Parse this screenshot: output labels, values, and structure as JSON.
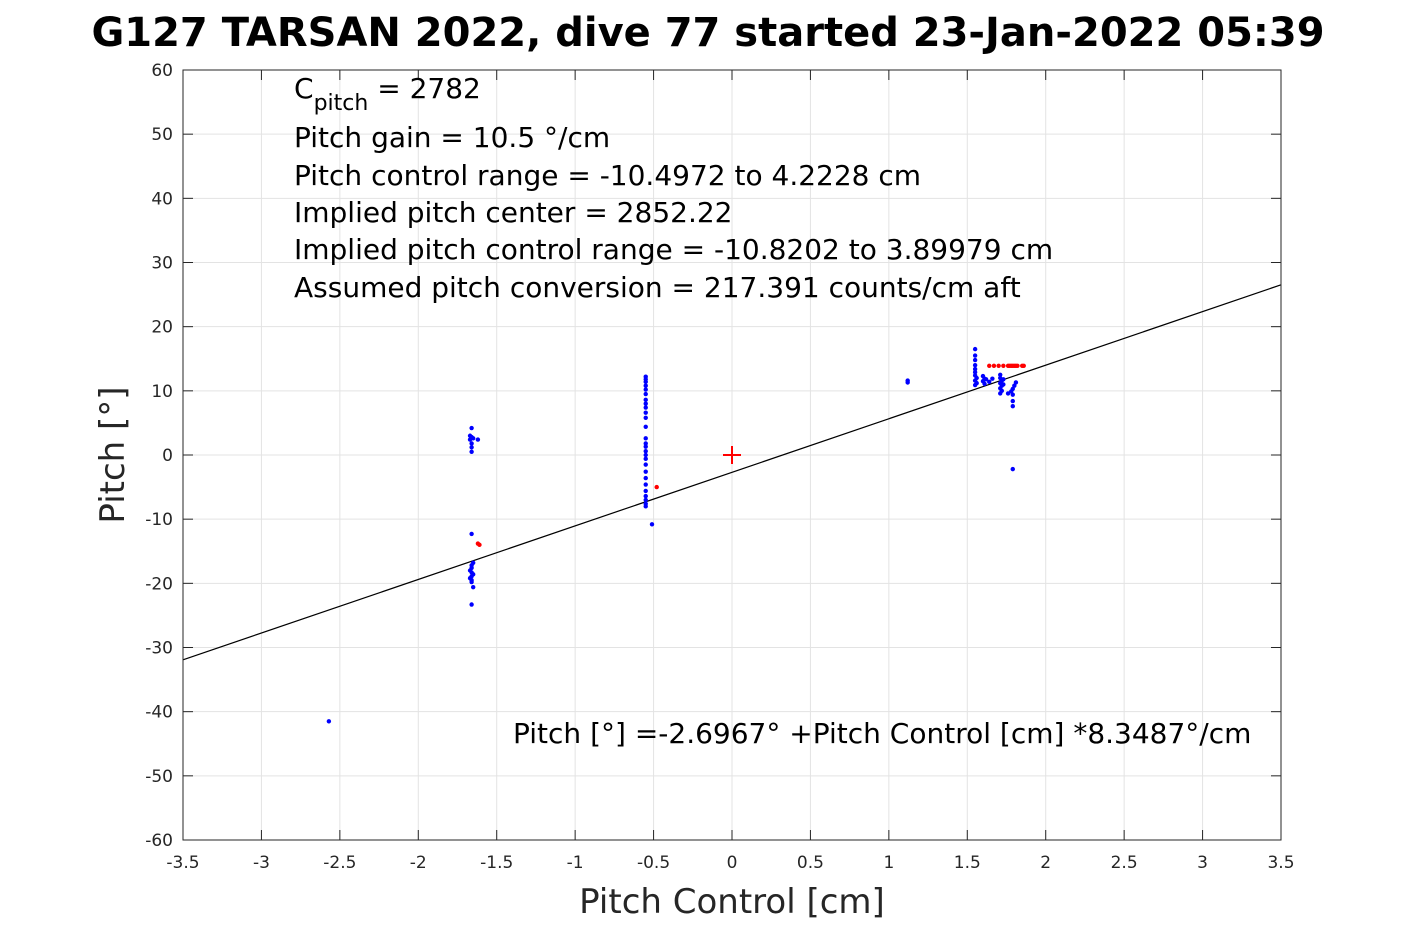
{
  "chart_data": {
    "type": "scatter",
    "title": "G127 TARSAN 2022, dive 77 started 23-Jan-2022 05:39",
    "xlabel": "Pitch Control [cm]",
    "ylabel": "Pitch [°]",
    "xlim": [
      -3.5,
      3.5
    ],
    "ylim": [
      -60,
      60
    ],
    "x_ticks": [
      -3.5,
      -3,
      -2.5,
      -2,
      -1.5,
      -1,
      -0.5,
      0,
      0.5,
      1,
      1.5,
      2,
      2.5,
      3,
      3.5
    ],
    "x_tick_labels": [
      "-3.5",
      "-3",
      "-2.5",
      "-2",
      "-1.5",
      "-1",
      "-0.5",
      "0",
      "0.5",
      "1",
      "1.5",
      "2",
      "2.5",
      "3",
      "3.5"
    ],
    "y_ticks": [
      -60,
      -50,
      -40,
      -30,
      -20,
      -10,
      0,
      10,
      20,
      30,
      40,
      50,
      60
    ],
    "y_tick_labels": [
      "-60",
      "-50",
      "-40",
      "-30",
      "-20",
      "-10",
      "0",
      "10",
      "20",
      "30",
      "40",
      "50",
      "60"
    ],
    "grid": true,
    "annotations": {
      "c_pitch": {
        "main": "C",
        "sub": "pitch",
        "rest": " = 2782"
      },
      "lines": [
        "Pitch gain = 10.5 °/cm",
        "Pitch control range = -10.4972 to 4.2228 cm",
        "Implied pitch center = 2852.22",
        "Implied pitch control range = -10.8202 to 3.89979 cm",
        "Assumed pitch conversion = 217.391 counts/cm aft"
      ],
      "fit_equation": "Pitch [°] =-2.6967° +Pitch Control [cm] *8.3487°/cm"
    },
    "fit": {
      "intercept": -2.6967,
      "slope": 8.3487,
      "color": "#000000"
    },
    "center_marker": {
      "x": 0,
      "y": 0,
      "color": "#ff0000"
    },
    "series": [
      {
        "color": "#0000ff",
        "points": [
          [
            -1.66,
            4.2
          ],
          [
            -1.67,
            3.0
          ],
          [
            -1.66,
            2.8
          ],
          [
            -1.65,
            2.6
          ],
          [
            -1.67,
            2.4
          ],
          [
            -1.66,
            1.8
          ],
          [
            -1.66,
            1.2
          ],
          [
            -1.66,
            0.5
          ],
          [
            -1.62,
            2.4
          ],
          [
            -1.66,
            -12.3
          ],
          [
            -1.65,
            -16.8
          ],
          [
            -1.66,
            -17.2
          ],
          [
            -1.66,
            -17.6
          ],
          [
            -1.67,
            -18.0
          ],
          [
            -1.66,
            -18.3
          ],
          [
            -1.65,
            -18.6
          ],
          [
            -1.66,
            -18.9
          ],
          [
            -1.67,
            -19.2
          ],
          [
            -1.66,
            -19.5
          ],
          [
            -1.66,
            -19.8
          ],
          [
            -1.65,
            -20.6
          ],
          [
            -1.66,
            -23.3
          ],
          [
            -2.57,
            -41.5
          ],
          [
            -0.55,
            12.2
          ],
          [
            -0.55,
            11.8
          ],
          [
            -0.55,
            11.4
          ],
          [
            -0.55,
            10.8
          ],
          [
            -0.55,
            10.2
          ],
          [
            -0.55,
            9.5
          ],
          [
            -0.55,
            8.6
          ],
          [
            -0.55,
            8.0
          ],
          [
            -0.55,
            7.4
          ],
          [
            -0.55,
            6.6
          ],
          [
            -0.55,
            5.8
          ],
          [
            -0.55,
            4.4
          ],
          [
            -0.55,
            2.6
          ],
          [
            -0.55,
            1.8
          ],
          [
            -0.55,
            1.3
          ],
          [
            -0.55,
            0.6
          ],
          [
            -0.55,
            0.0
          ],
          [
            -0.55,
            -0.6
          ],
          [
            -0.55,
            -1.5
          ],
          [
            -0.55,
            -2.6
          ],
          [
            -0.55,
            -3.6
          ],
          [
            -0.55,
            -4.6
          ],
          [
            -0.55,
            -5.6
          ],
          [
            -0.55,
            -6.4
          ],
          [
            -0.55,
            -7.0
          ],
          [
            -0.55,
            -7.6
          ],
          [
            -0.55,
            -8.0
          ],
          [
            -0.51,
            -10.8
          ],
          [
            1.12,
            11.6
          ],
          [
            1.12,
            11.3
          ],
          [
            1.55,
            16.5
          ],
          [
            1.55,
            15.5
          ],
          [
            1.55,
            14.8
          ],
          [
            1.55,
            14.0
          ],
          [
            1.55,
            13.4
          ],
          [
            1.55,
            12.9
          ],
          [
            1.55,
            12.4
          ],
          [
            1.56,
            12.0
          ],
          [
            1.55,
            11.6
          ],
          [
            1.56,
            11.2
          ],
          [
            1.55,
            10.9
          ],
          [
            1.6,
            12.3
          ],
          [
            1.61,
            11.9
          ],
          [
            1.6,
            11.5
          ],
          [
            1.61,
            11.1
          ],
          [
            1.62,
            11.8
          ],
          [
            1.64,
            11.4
          ],
          [
            1.66,
            11.9
          ],
          [
            1.71,
            12.5
          ],
          [
            1.71,
            12.0
          ],
          [
            1.72,
            11.6
          ],
          [
            1.71,
            11.2
          ],
          [
            1.72,
            10.8
          ],
          [
            1.71,
            10.4
          ],
          [
            1.72,
            10.0
          ],
          [
            1.71,
            9.6
          ],
          [
            1.73,
            11.8
          ],
          [
            1.73,
            11.0
          ],
          [
            1.76,
            9.6
          ],
          [
            1.78,
            9.9
          ],
          [
            1.79,
            10.3
          ],
          [
            1.79,
            9.4
          ],
          [
            1.8,
            10.8
          ],
          [
            1.81,
            11.3
          ],
          [
            1.79,
            8.4
          ],
          [
            1.79,
            7.6
          ],
          [
            1.79,
            -2.2
          ]
        ]
      },
      {
        "color": "#ff0000",
        "points": [
          [
            -1.62,
            -13.8
          ],
          [
            -1.61,
            -14.0
          ],
          [
            -0.48,
            -5.0
          ],
          [
            1.64,
            13.9
          ],
          [
            1.67,
            13.9
          ],
          [
            1.7,
            13.9
          ],
          [
            1.73,
            13.9
          ],
          [
            1.76,
            13.9
          ],
          [
            1.77,
            13.9
          ],
          [
            1.78,
            13.9
          ],
          [
            1.79,
            13.9
          ],
          [
            1.8,
            13.9
          ],
          [
            1.81,
            13.9
          ],
          [
            1.82,
            13.9
          ],
          [
            1.85,
            13.9
          ],
          [
            1.86,
            13.9
          ]
        ]
      }
    ]
  }
}
